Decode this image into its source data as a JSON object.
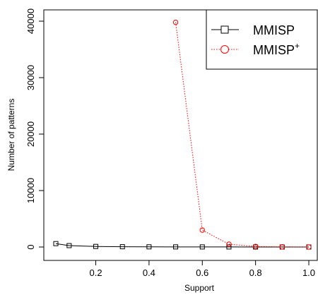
{
  "chart_data": {
    "type": "line",
    "title": "",
    "xlabel": "Support",
    "ylabel": "Number of patterns",
    "xlim": [
      0.05,
      1.0
    ],
    "ylim": [
      0,
      40000
    ],
    "x_ticks": [
      0.2,
      0.4,
      0.6,
      0.8,
      1.0
    ],
    "x_tick_labels": [
      "0.2",
      "0.4",
      "0.6",
      "0.8",
      "1.0"
    ],
    "y_ticks": [
      0,
      10000,
      20000,
      30000,
      40000
    ],
    "y_tick_labels": [
      "0",
      "10000",
      "20000",
      "30000",
      "40000"
    ],
    "grid": false,
    "legend_position": "top-right",
    "series": [
      {
        "name": "MMISP",
        "name_superscript": "",
        "color": "#000000",
        "line_style": "solid",
        "marker": "square",
        "x": [
          0.05,
          0.1,
          0.2,
          0.3,
          0.4,
          0.5,
          0.6,
          0.7,
          0.8,
          0.9,
          1.0
        ],
        "y": [
          600,
          250,
          100,
          50,
          30,
          20,
          15,
          10,
          5,
          3,
          2
        ]
      },
      {
        "name": "MMISP",
        "name_superscript": "+",
        "color": "#ff0000",
        "line_style": "dotted",
        "marker": "circle",
        "x": [
          0.5,
          0.6,
          0.7,
          0.8,
          0.9,
          1.0
        ],
        "y": [
          39800,
          3000,
          500,
          100,
          30,
          10
        ]
      }
    ]
  }
}
